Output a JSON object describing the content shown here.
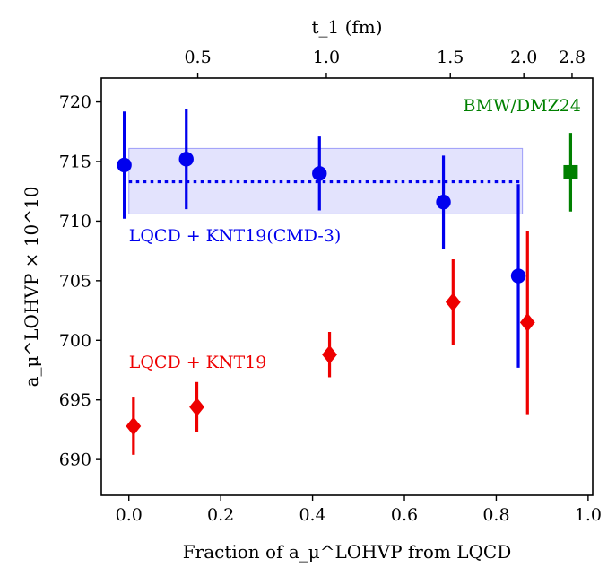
{
  "chart_data": {
    "type": "scatter",
    "xlabel": "Fraction of a_μ^LOHVP from LQCD",
    "ylabel": "a_μ^LOHVP × 10^10",
    "top_axis_label": "t_1 (fm)",
    "xlim": [
      -0.06,
      1.01
    ],
    "ylim": [
      687,
      722
    ],
    "x_ticks": [
      0.0,
      0.2,
      0.4,
      0.6,
      0.8,
      1.0
    ],
    "x_tick_labels": [
      "0.0",
      "0.2",
      "0.4",
      "0.6",
      "0.8",
      "1.0"
    ],
    "y_ticks": [
      690,
      695,
      700,
      705,
      710,
      715,
      720
    ],
    "y_tick_labels": [
      "690",
      "695",
      "700",
      "705",
      "710",
      "715",
      "720"
    ],
    "top_ticks": [
      0.15,
      0.43,
      0.7,
      0.86,
      0.965
    ],
    "top_tick_labels": [
      "0.5",
      "1.0",
      "1.5",
      "2.0",
      "2.8"
    ],
    "grid": false,
    "series": [
      {
        "name": "LQCD + KNT19(CMD-3)",
        "label_text": "LQCD + KNT19(CMD-3)",
        "color": "#0000ee",
        "marker": "circle",
        "x": [
          -0.01,
          0.125,
          0.415,
          0.685,
          0.848
        ],
        "y": [
          714.7,
          715.2,
          714.0,
          711.6,
          705.4
        ],
        "err": [
          4.5,
          4.2,
          3.1,
          3.9,
          7.7
        ],
        "label_pos": [
          0.0,
          708.3
        ]
      },
      {
        "name": "LQCD + KNT19",
        "label_text": "LQCD + KNT19",
        "color": "#ee0000",
        "marker": "diamond",
        "x": [
          0.01,
          0.148,
          0.437,
          0.706,
          0.868
        ],
        "y": [
          692.8,
          694.4,
          698.8,
          703.2,
          701.5
        ],
        "err": [
          2.4,
          2.1,
          1.9,
          3.6,
          7.7
        ],
        "label_pos": [
          0.0,
          697.7
        ]
      },
      {
        "name": "BMW/DMZ24",
        "label_text": "BMW/DMZ24",
        "color": "#008000",
        "marker": "square",
        "x": [
          0.962
        ],
        "y": [
          714.1
        ],
        "err": [
          3.3
        ],
        "label_pos": [
          0.965,
          719.2
        ]
      }
    ],
    "band": {
      "x_range": [
        0.0,
        0.857
      ],
      "y_center": 713.3,
      "y_range": [
        710.6,
        716.1
      ],
      "color": "#0000ee"
    }
  }
}
